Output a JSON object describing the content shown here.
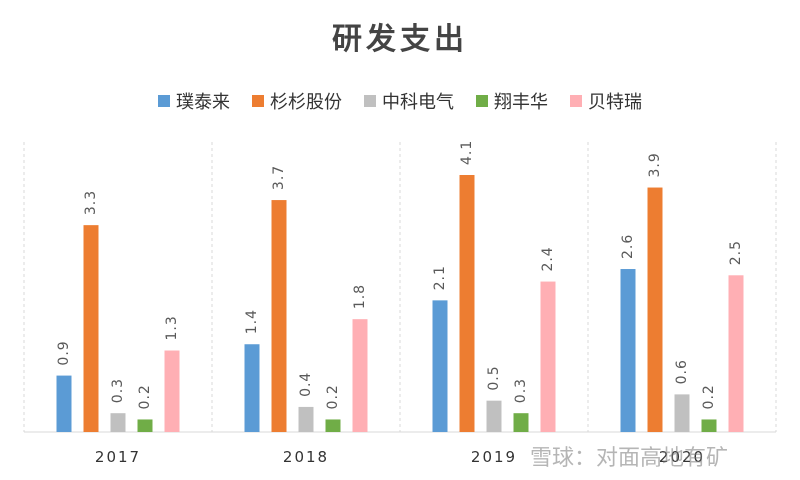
{
  "chart_data": {
    "type": "bar",
    "title": "研发支出",
    "categories": [
      "2017",
      "2018",
      "2019",
      "2020"
    ],
    "series": [
      {
        "name": "璞泰来",
        "color": "#5B9BD5",
        "values": [
          0.9,
          1.4,
          2.1,
          2.6
        ]
      },
      {
        "name": "杉杉股份",
        "color": "#ED7D31",
        "values": [
          3.3,
          3.7,
          4.1,
          3.9
        ]
      },
      {
        "name": "中科电气",
        "color": "#C0C0C0",
        "values": [
          0.3,
          0.4,
          0.5,
          0.6
        ]
      },
      {
        "name": "翔丰华",
        "color": "#70AD47",
        "values": [
          0.2,
          0.2,
          0.3,
          0.2
        ]
      },
      {
        "name": "贝特瑞",
        "color": "#FFAFB4",
        "values": [
          1.3,
          1.8,
          2.4,
          2.5
        ]
      }
    ],
    "xlabel": "",
    "ylabel": "",
    "ylim": [
      0,
      4.2
    ],
    "grid": false,
    "legend": "top"
  },
  "watermark": "雪球：对面高地有矿"
}
